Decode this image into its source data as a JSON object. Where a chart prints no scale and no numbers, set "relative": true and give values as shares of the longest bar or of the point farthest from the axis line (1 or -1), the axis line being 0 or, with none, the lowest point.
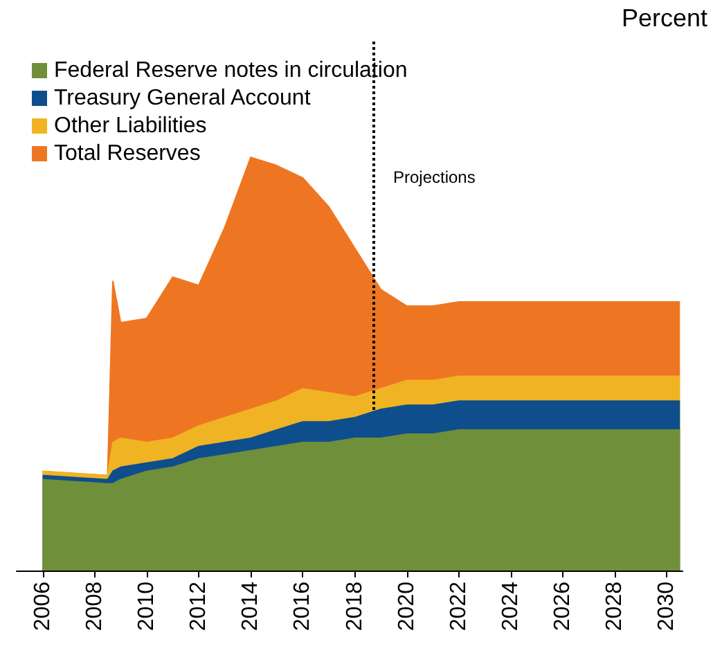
{
  "chart_data": {
    "type": "area",
    "stacked": true,
    "relative": true,
    "annotations": [
      "Percent"
    ],
    "legend": "top left",
    "grid": false,
    "marker": "none",
    "x": [
      2006,
      2008.5,
      2008.7,
      2009,
      2010,
      2011,
      2012,
      2013,
      2014,
      2015,
      2016,
      2017,
      2018,
      2019,
      2020,
      2021,
      2022,
      2030.5
    ],
    "xlim": [
      2005,
      2030.6
    ],
    "xticks": [
      2006,
      2008,
      2010,
      2012,
      2014,
      2016,
      2018,
      2020,
      2022,
      2024,
      2026,
      2028,
      2030
    ],
    "series": [
      {
        "name": "Federal Reserve notes in circulation",
        "color": "#6f8f3a",
        "values": [
          0.22,
          0.21,
          0.21,
          0.22,
          0.24,
          0.25,
          0.27,
          0.28,
          0.29,
          0.3,
          0.31,
          0.31,
          0.32,
          0.32,
          0.33,
          0.33,
          0.34,
          0.34
        ]
      },
      {
        "name": "Treasury General Account",
        "color": "#0f4e8c",
        "values": [
          0.01,
          0.01,
          0.03,
          0.03,
          0.02,
          0.02,
          0.03,
          0.03,
          0.03,
          0.04,
          0.05,
          0.05,
          0.05,
          0.07,
          0.07,
          0.07,
          0.07,
          0.07
        ]
      },
      {
        "name": "Other Liabilities",
        "color": "#f0b323",
        "values": [
          0.01,
          0.01,
          0.07,
          0.07,
          0.05,
          0.05,
          0.05,
          0.06,
          0.07,
          0.07,
          0.08,
          0.07,
          0.05,
          0.05,
          0.06,
          0.06,
          0.06,
          0.06
        ]
      },
      {
        "name": "Total Reserves",
        "color": "#ee7623",
        "values": [
          0,
          0,
          0.39,
          0.28,
          0.3,
          0.39,
          0.34,
          0.46,
          0.61,
          0.57,
          0.51,
          0.45,
          0.36,
          0.24,
          0.18,
          0.18,
          0.18,
          0.18
        ]
      }
    ],
    "ref_lines": [
      {
        "axis": "x",
        "value": 2018.73,
        "label": "Projections",
        "color": "#000000",
        "line_style": "dotted"
      }
    ]
  }
}
